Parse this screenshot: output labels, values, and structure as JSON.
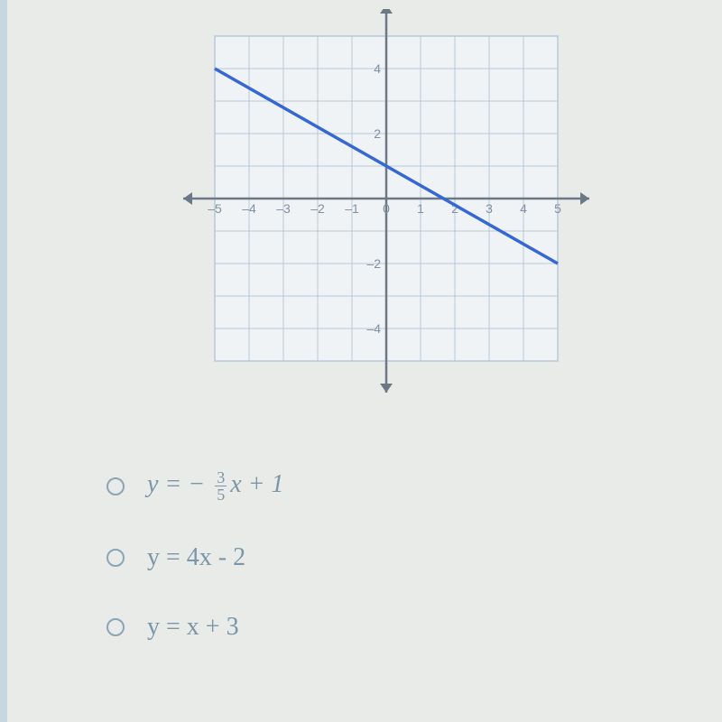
{
  "chart": {
    "type": "line",
    "xlim": [
      -5,
      5
    ],
    "ylim": [
      -5,
      5
    ],
    "xticks": [
      -5,
      -4,
      -3,
      -2,
      -1,
      0,
      1,
      2,
      3,
      4,
      5
    ],
    "yticks": [
      -4,
      -2,
      2,
      4
    ],
    "grid_color": "#b8c8d8",
    "axis_color": "#6b7885",
    "line_color": "#3568d4",
    "line_width": 3.5,
    "background_color": "#f0f3f5",
    "tick_fontsize": 14,
    "tick_color": "#8090a0",
    "line_points": [
      [
        -5,
        4
      ],
      [
        5,
        -2
      ]
    ],
    "grid_box": {
      "xmin": -5,
      "xmax": 5,
      "ymin": -5,
      "ymax": 5
    }
  },
  "options": [
    {
      "type": "fraction",
      "prefix": "y  =   − ",
      "num": "3",
      "den": "5",
      "suffix": "x  +  1"
    },
    {
      "type": "plain",
      "text": "y = 4x - 2"
    },
    {
      "type": "plain",
      "text": "y = x + 3"
    }
  ]
}
